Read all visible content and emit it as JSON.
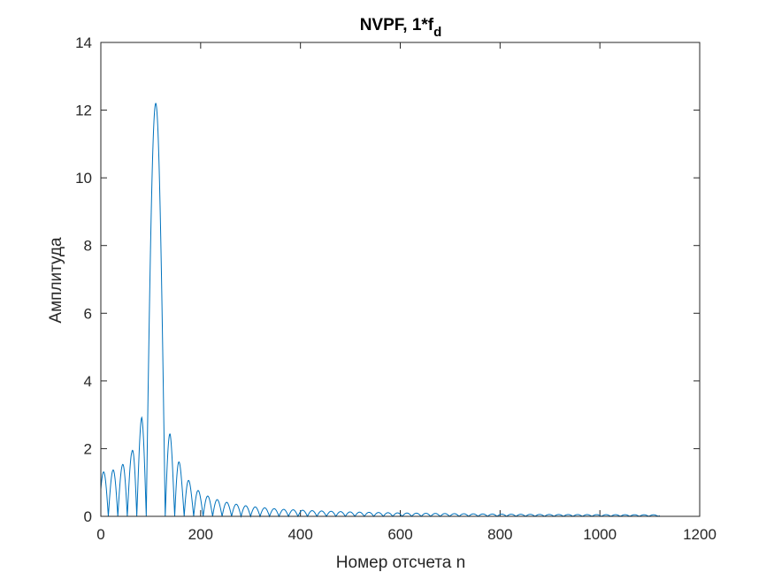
{
  "chart_data": {
    "type": "line",
    "title": {
      "main": "NVPF, 1*f",
      "subscript": "d"
    },
    "xlabel": "Номер отсчета n",
    "ylabel": "Амплитуда",
    "xlim": [
      0,
      1200
    ],
    "ylim": [
      0,
      14
    ],
    "xticks": [
      0,
      200,
      400,
      600,
      800,
      1000,
      1200
    ],
    "yticks": [
      0,
      2,
      4,
      6,
      8,
      10,
      12,
      14
    ],
    "grid": false,
    "series": [
      {
        "color": "#0072BD",
        "peak": {
          "n": 110,
          "amplitude": 12.2
        },
        "null_spacing": 19,
        "n_max": 1120,
        "sidelobe_peaks": [
          {
            "n": 0,
            "amplitude": 1.3
          },
          {
            "n": 22,
            "amplitude": 1.35
          },
          {
            "n": 42,
            "amplitude": 1.5
          },
          {
            "n": 62,
            "amplitude": 1.9
          },
          {
            "n": 82,
            "amplitude": 2.93
          },
          {
            "n": 139,
            "amplitude": 2.43
          },
          {
            "n": 162,
            "amplitude": 1.38
          },
          {
            "n": 182,
            "amplitude": 0.93
          },
          {
            "n": 202,
            "amplitude": 0.68
          },
          {
            "n": 222,
            "amplitude": 0.55
          },
          {
            "n": 242,
            "amplitude": 0.45
          },
          {
            "n": 262,
            "amplitude": 0.38
          },
          {
            "n": 300,
            "amplitude": 0.29
          },
          {
            "n": 360,
            "amplitude": 0.21
          },
          {
            "n": 420,
            "amplitude": 0.17
          },
          {
            "n": 500,
            "amplitude": 0.13
          },
          {
            "n": 600,
            "amplitude": 0.1
          },
          {
            "n": 700,
            "amplitude": 0.08
          },
          {
            "n": 800,
            "amplitude": 0.065
          },
          {
            "n": 900,
            "amplitude": 0.055
          },
          {
            "n": 1000,
            "amplitude": 0.05
          },
          {
            "n": 1120,
            "amplitude": 0.045
          }
        ]
      }
    ]
  }
}
